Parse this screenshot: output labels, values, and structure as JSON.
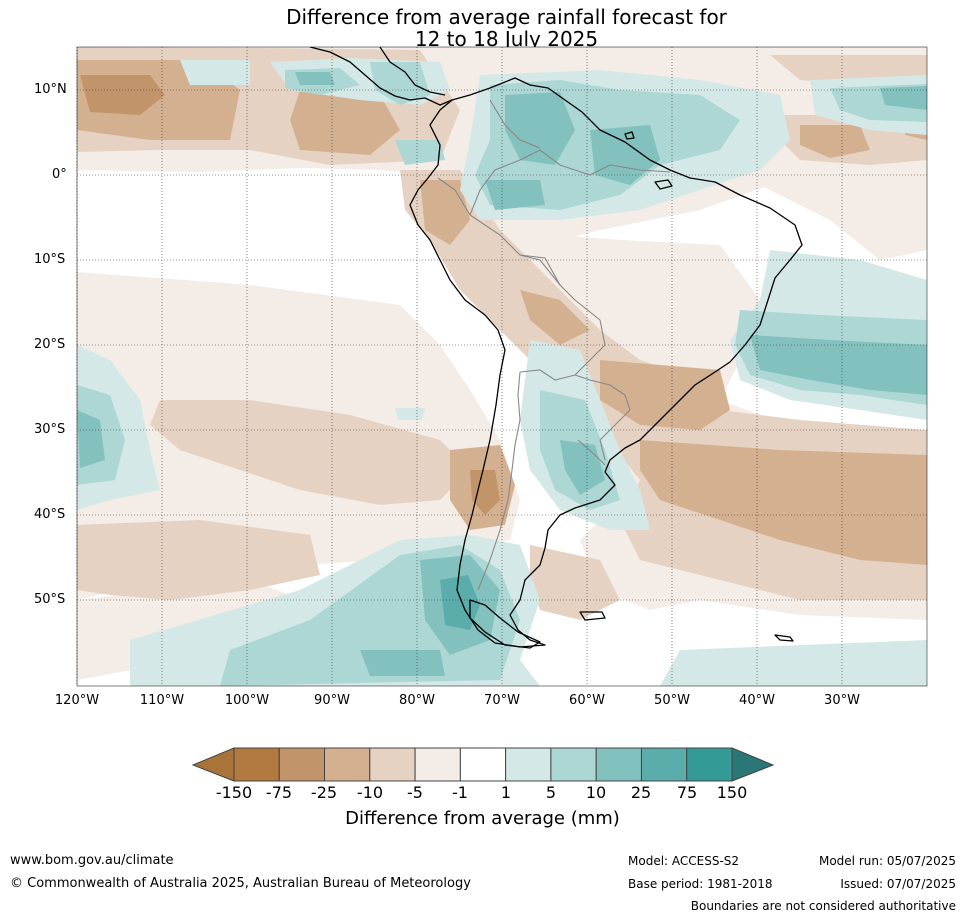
{
  "title_line1": "Difference from average rainfall forecast for",
  "title_line2": "12 to 18 July 2025",
  "map": {
    "lat_labels": [
      "10°N",
      "0°",
      "10°S",
      "20°S",
      "30°S",
      "40°S",
      "50°S"
    ],
    "lon_labels": [
      "120°W",
      "110°W",
      "100°W",
      "90°W",
      "80°W",
      "70°W",
      "60°W",
      "50°W",
      "40°W",
      "30°W"
    ],
    "colors": {
      "dry_extreme": "#a9733a",
      "dry_strong": "#b27940",
      "dry_mod": "#c2946a",
      "dry_low": "#d3b190",
      "dry_slight": "#e6d2c2",
      "dry_trace": "#f4ece6",
      "neutral": "#ffffff",
      "wet_trace": "#d4e9e7",
      "wet_slight": "#acd7d5",
      "wet_mod": "#83c1bf",
      "wet_strong": "#5aadaa",
      "wet_high": "#339a96",
      "wet_extreme": "#2b7777"
    }
  },
  "colorbar": {
    "title": "Difference from average (mm)",
    "ticks": [
      "-150",
      "-75",
      "-25",
      "-10",
      "-5",
      "-1",
      "1",
      "5",
      "10",
      "25",
      "75",
      "150"
    ],
    "colors": [
      "#b27940",
      "#c2946a",
      "#d3b190",
      "#e6d2c2",
      "#f4ece6",
      "#ffffff",
      "#d4e9e7",
      "#acd7d5",
      "#83c1bf",
      "#5aadaa",
      "#339a96"
    ],
    "under_color": "#a9733a",
    "over_color": "#2b7777"
  },
  "footer": {
    "website": "www.bom.gov.au/climate",
    "copyright": "© Commonwealth of Australia 2025, Australian Bureau of Meteorology",
    "model": "Model: ACCESS-S2",
    "base_period": "Base period: 1981-2018",
    "model_run": "Model run: 05/07/2025",
    "issued": "Issued: 07/07/2025",
    "disclaimer": "Boundaries are not considered authoritative"
  }
}
